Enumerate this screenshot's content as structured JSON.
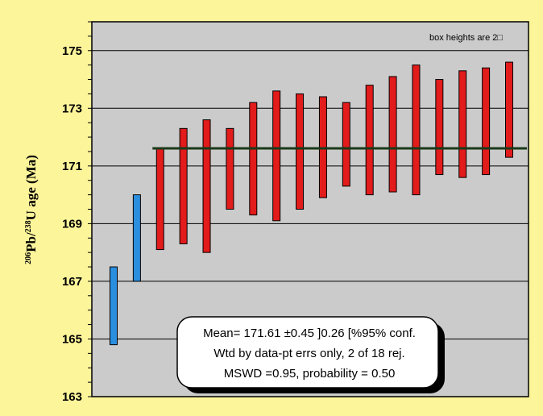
{
  "chart_data": {
    "type": "bar",
    "ylim": [
      163,
      176
    ],
    "yticks": [
      163,
      165,
      167,
      169,
      171,
      173,
      175
    ],
    "ylabel": {
      "prefix_sup": "206",
      "part1": "Pb/",
      "mid_sup": "238",
      "part2": "U age (Ma)"
    },
    "note": "box heights are 2□",
    "mean": 171.61,
    "boxes": [
      {
        "low": 164.8,
        "high": 167.5,
        "rejected": true
      },
      {
        "low": 167.0,
        "high": 170.0,
        "rejected": true
      },
      {
        "low": 168.1,
        "high": 171.6,
        "rejected": false
      },
      {
        "low": 168.3,
        "high": 172.3,
        "rejected": false
      },
      {
        "low": 168.0,
        "high": 172.6,
        "rejected": false
      },
      {
        "low": 169.5,
        "high": 172.3,
        "rejected": false
      },
      {
        "low": 169.3,
        "high": 173.2,
        "rejected": false
      },
      {
        "low": 169.1,
        "high": 173.6,
        "rejected": false
      },
      {
        "low": 169.5,
        "high": 173.5,
        "rejected": false
      },
      {
        "low": 169.9,
        "high": 173.4,
        "rejected": false
      },
      {
        "low": 170.3,
        "high": 173.2,
        "rejected": false
      },
      {
        "low": 170.0,
        "high": 173.8,
        "rejected": false
      },
      {
        "low": 170.1,
        "high": 174.1,
        "rejected": false
      },
      {
        "low": 170.0,
        "high": 174.5,
        "rejected": false
      },
      {
        "low": 170.7,
        "high": 174.0,
        "rejected": false
      },
      {
        "low": 170.6,
        "high": 174.3,
        "rejected": false
      },
      {
        "low": 170.7,
        "high": 174.4,
        "rejected": false
      },
      {
        "low": 171.3,
        "high": 174.6,
        "rejected": false
      }
    ],
    "stats": {
      "line1": "Mean= 171.61 ±0.45  ]0.26  [%95% conf.",
      "line2": "Wtd by data-pt errs only, 2 of 18 rej.",
      "line3": "MSWD  =0.95, probability = 0.50"
    }
  },
  "colors": {
    "background": "#fdf59a",
    "plot_area": "#cbcbcb",
    "accepted_box": "#e21b1b",
    "rejected_box": "#2b8fe0",
    "mean_line": "#1a3a1a",
    "stats_box": "#ffffff"
  }
}
